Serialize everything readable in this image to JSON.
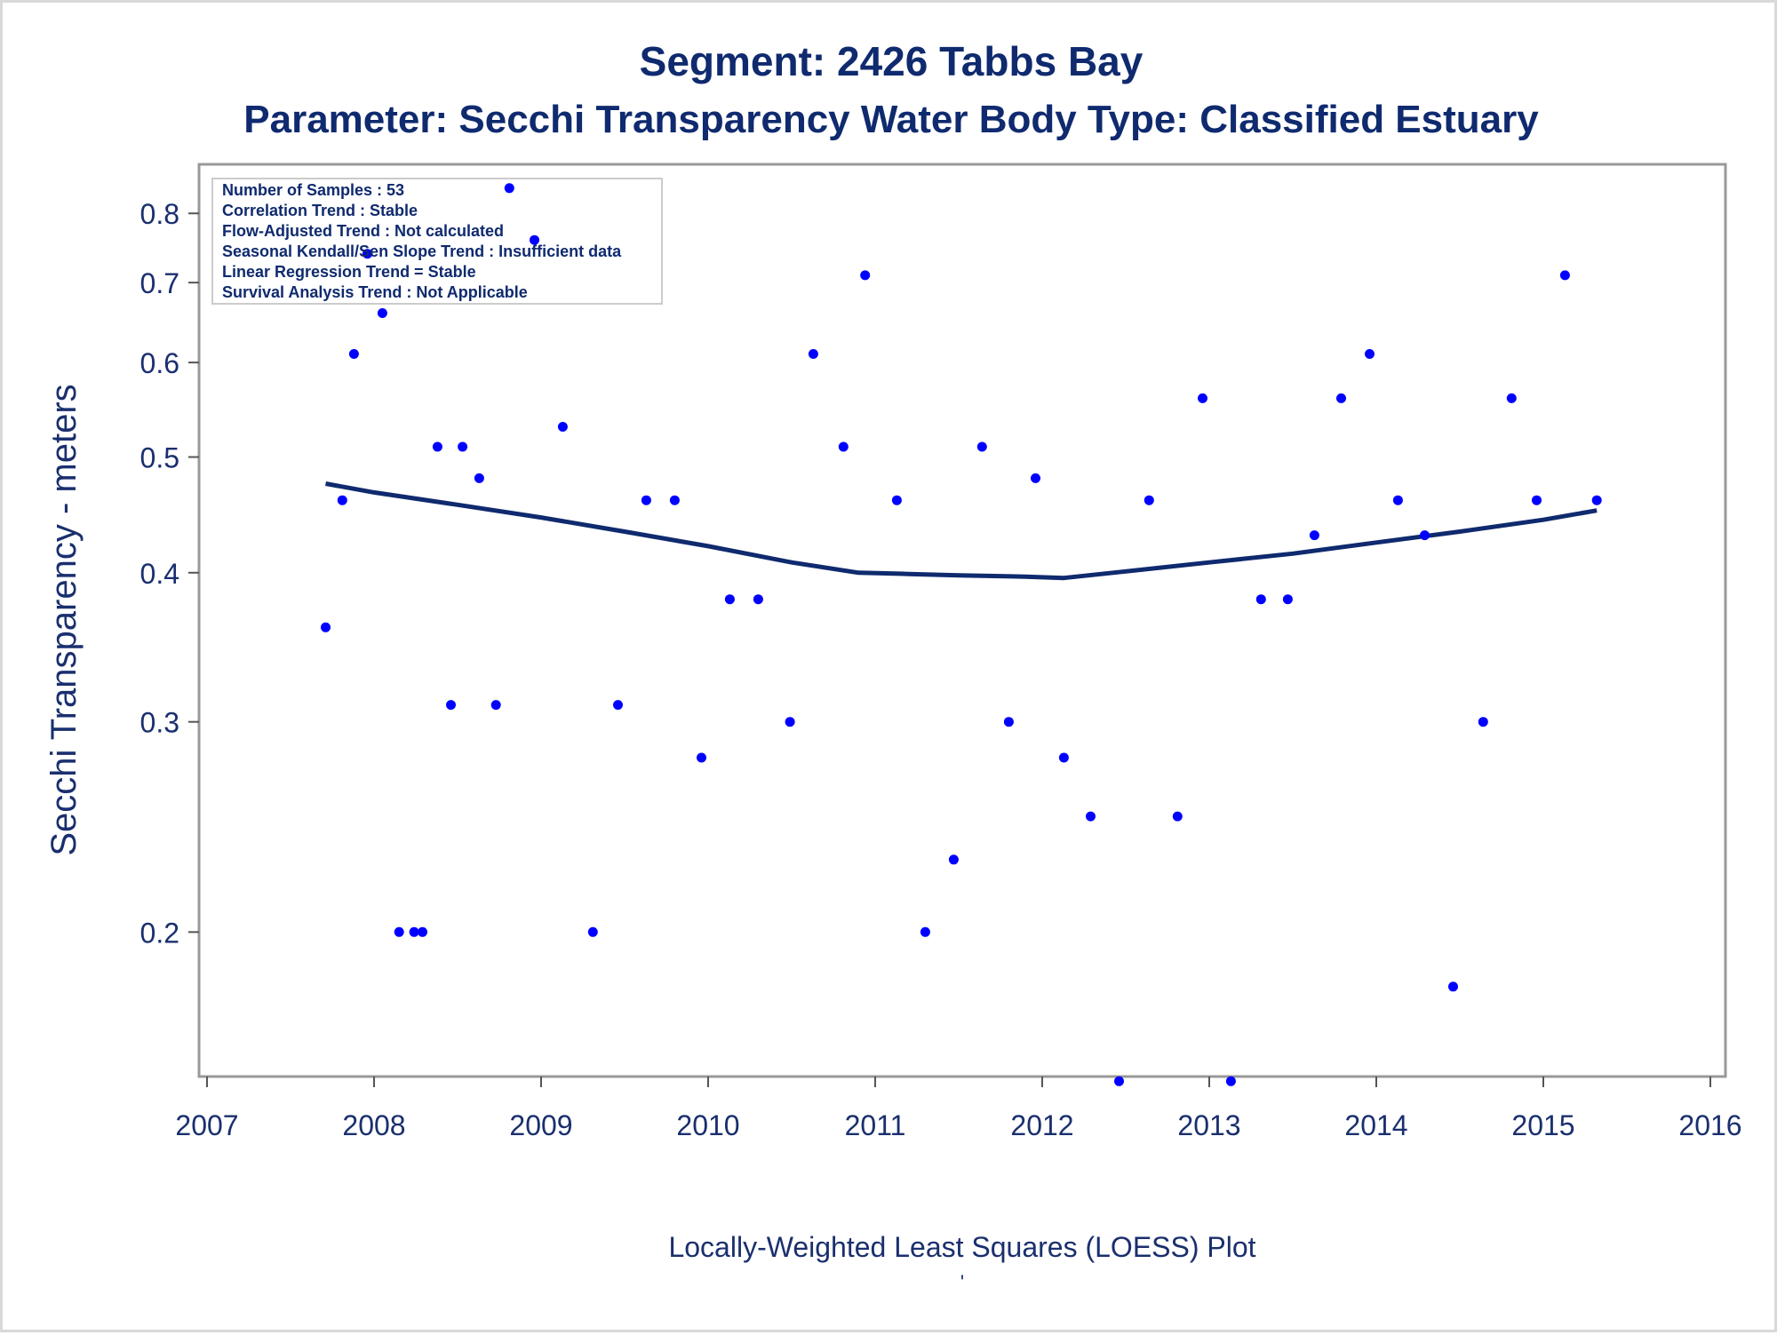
{
  "chart_data": {
    "type": "scatter",
    "title": "Segment: 2426  Tabbs Bay",
    "subtitle": "Parameter: Secchi Transparency   Water Body Type: Classified Estuary",
    "xlabel": "Locally-Weighted Least Squares (LOESS) Plot",
    "ylabel": "Secchi Transparency - meters",
    "footnote": "'",
    "y_scale": "log",
    "xlim": [
      2007,
      2016
    ],
    "ylim": [
      0.15,
      0.84
    ],
    "x_ticks": [
      "2007",
      "2008",
      "2009",
      "2010",
      "2011",
      "2012",
      "2013",
      "2014",
      "2015",
      "2016"
    ],
    "y_ticks": [
      "0.2",
      "0.3",
      "0.4",
      "0.5",
      "0.6",
      "0.7",
      "0.8"
    ],
    "grid": false,
    "legend_box": [
      "Number of Samples : 53",
      "Correlation Trend : Stable",
      "Flow-Adjusted Trend : Not calculated",
      "Seasonal Kendall/Sen Slope Trend : Insufficient data",
      "Linear Regression Trend = Stable",
      "Survival Analysis Trend : Not Applicable"
    ],
    "legend_placement": "top-left",
    "colors": {
      "points": "#0000ff",
      "loess": "#0f2a6e",
      "text": "#0f2a6e",
      "frame": "#999999"
    },
    "series": [
      {
        "kind": "points",
        "x": [
          2007.71,
          2007.81,
          2007.88,
          2007.96,
          2008.05,
          2008.15,
          2008.24,
          2008.29,
          2008.38,
          2008.46,
          2008.53,
          2008.63,
          2008.73,
          2008.81,
          2008.96,
          2009.13,
          2009.31,
          2009.46,
          2009.63,
          2009.8,
          2009.96,
          2010.13,
          2010.3,
          2010.49,
          2010.63,
          2010.81,
          2010.94,
          2011.13,
          2011.3,
          2011.47,
          2011.64,
          2011.8,
          2011.96,
          2012.13,
          2012.29,
          2012.46,
          2012.64,
          2012.81,
          2012.96,
          2013.13,
          2013.31,
          2013.47,
          2013.63,
          2013.79,
          2013.96,
          2014.13,
          2014.29,
          2014.46,
          2014.64,
          2014.81,
          2014.96,
          2015.13,
          2015.32
        ],
        "y": [
          0.36,
          0.46,
          0.61,
          0.74,
          0.66,
          0.2,
          0.2,
          0.2,
          0.51,
          0.31,
          0.51,
          0.48,
          0.31,
          0.84,
          0.76,
          0.53,
          0.2,
          0.31,
          0.46,
          0.46,
          0.28,
          0.38,
          0.38,
          0.3,
          0.61,
          0.51,
          0.71,
          0.46,
          0.2,
          0.23,
          0.51,
          0.3,
          0.48,
          0.28,
          0.25,
          0.15,
          0.46,
          0.25,
          0.56,
          0.15,
          0.38,
          0.38,
          0.43,
          0.56,
          0.61,
          0.46,
          0.43,
          0.18,
          0.3,
          0.56,
          0.46,
          0.71,
          0.46
        ]
      },
      {
        "kind": "loess",
        "x": [
          2007.71,
          2008.0,
          2008.5,
          2009.0,
          2009.5,
          2010.0,
          2010.5,
          2010.9,
          2011.2,
          2011.5,
          2011.9,
          2012.13,
          2012.5,
          2013.0,
          2013.5,
          2014.0,
          2014.5,
          2015.0,
          2015.32
        ],
        "y": [
          0.475,
          0.467,
          0.456,
          0.445,
          0.433,
          0.421,
          0.408,
          0.4,
          0.399,
          0.398,
          0.397,
          0.396,
          0.401,
          0.408,
          0.415,
          0.424,
          0.433,
          0.443,
          0.451
        ]
      }
    ]
  }
}
